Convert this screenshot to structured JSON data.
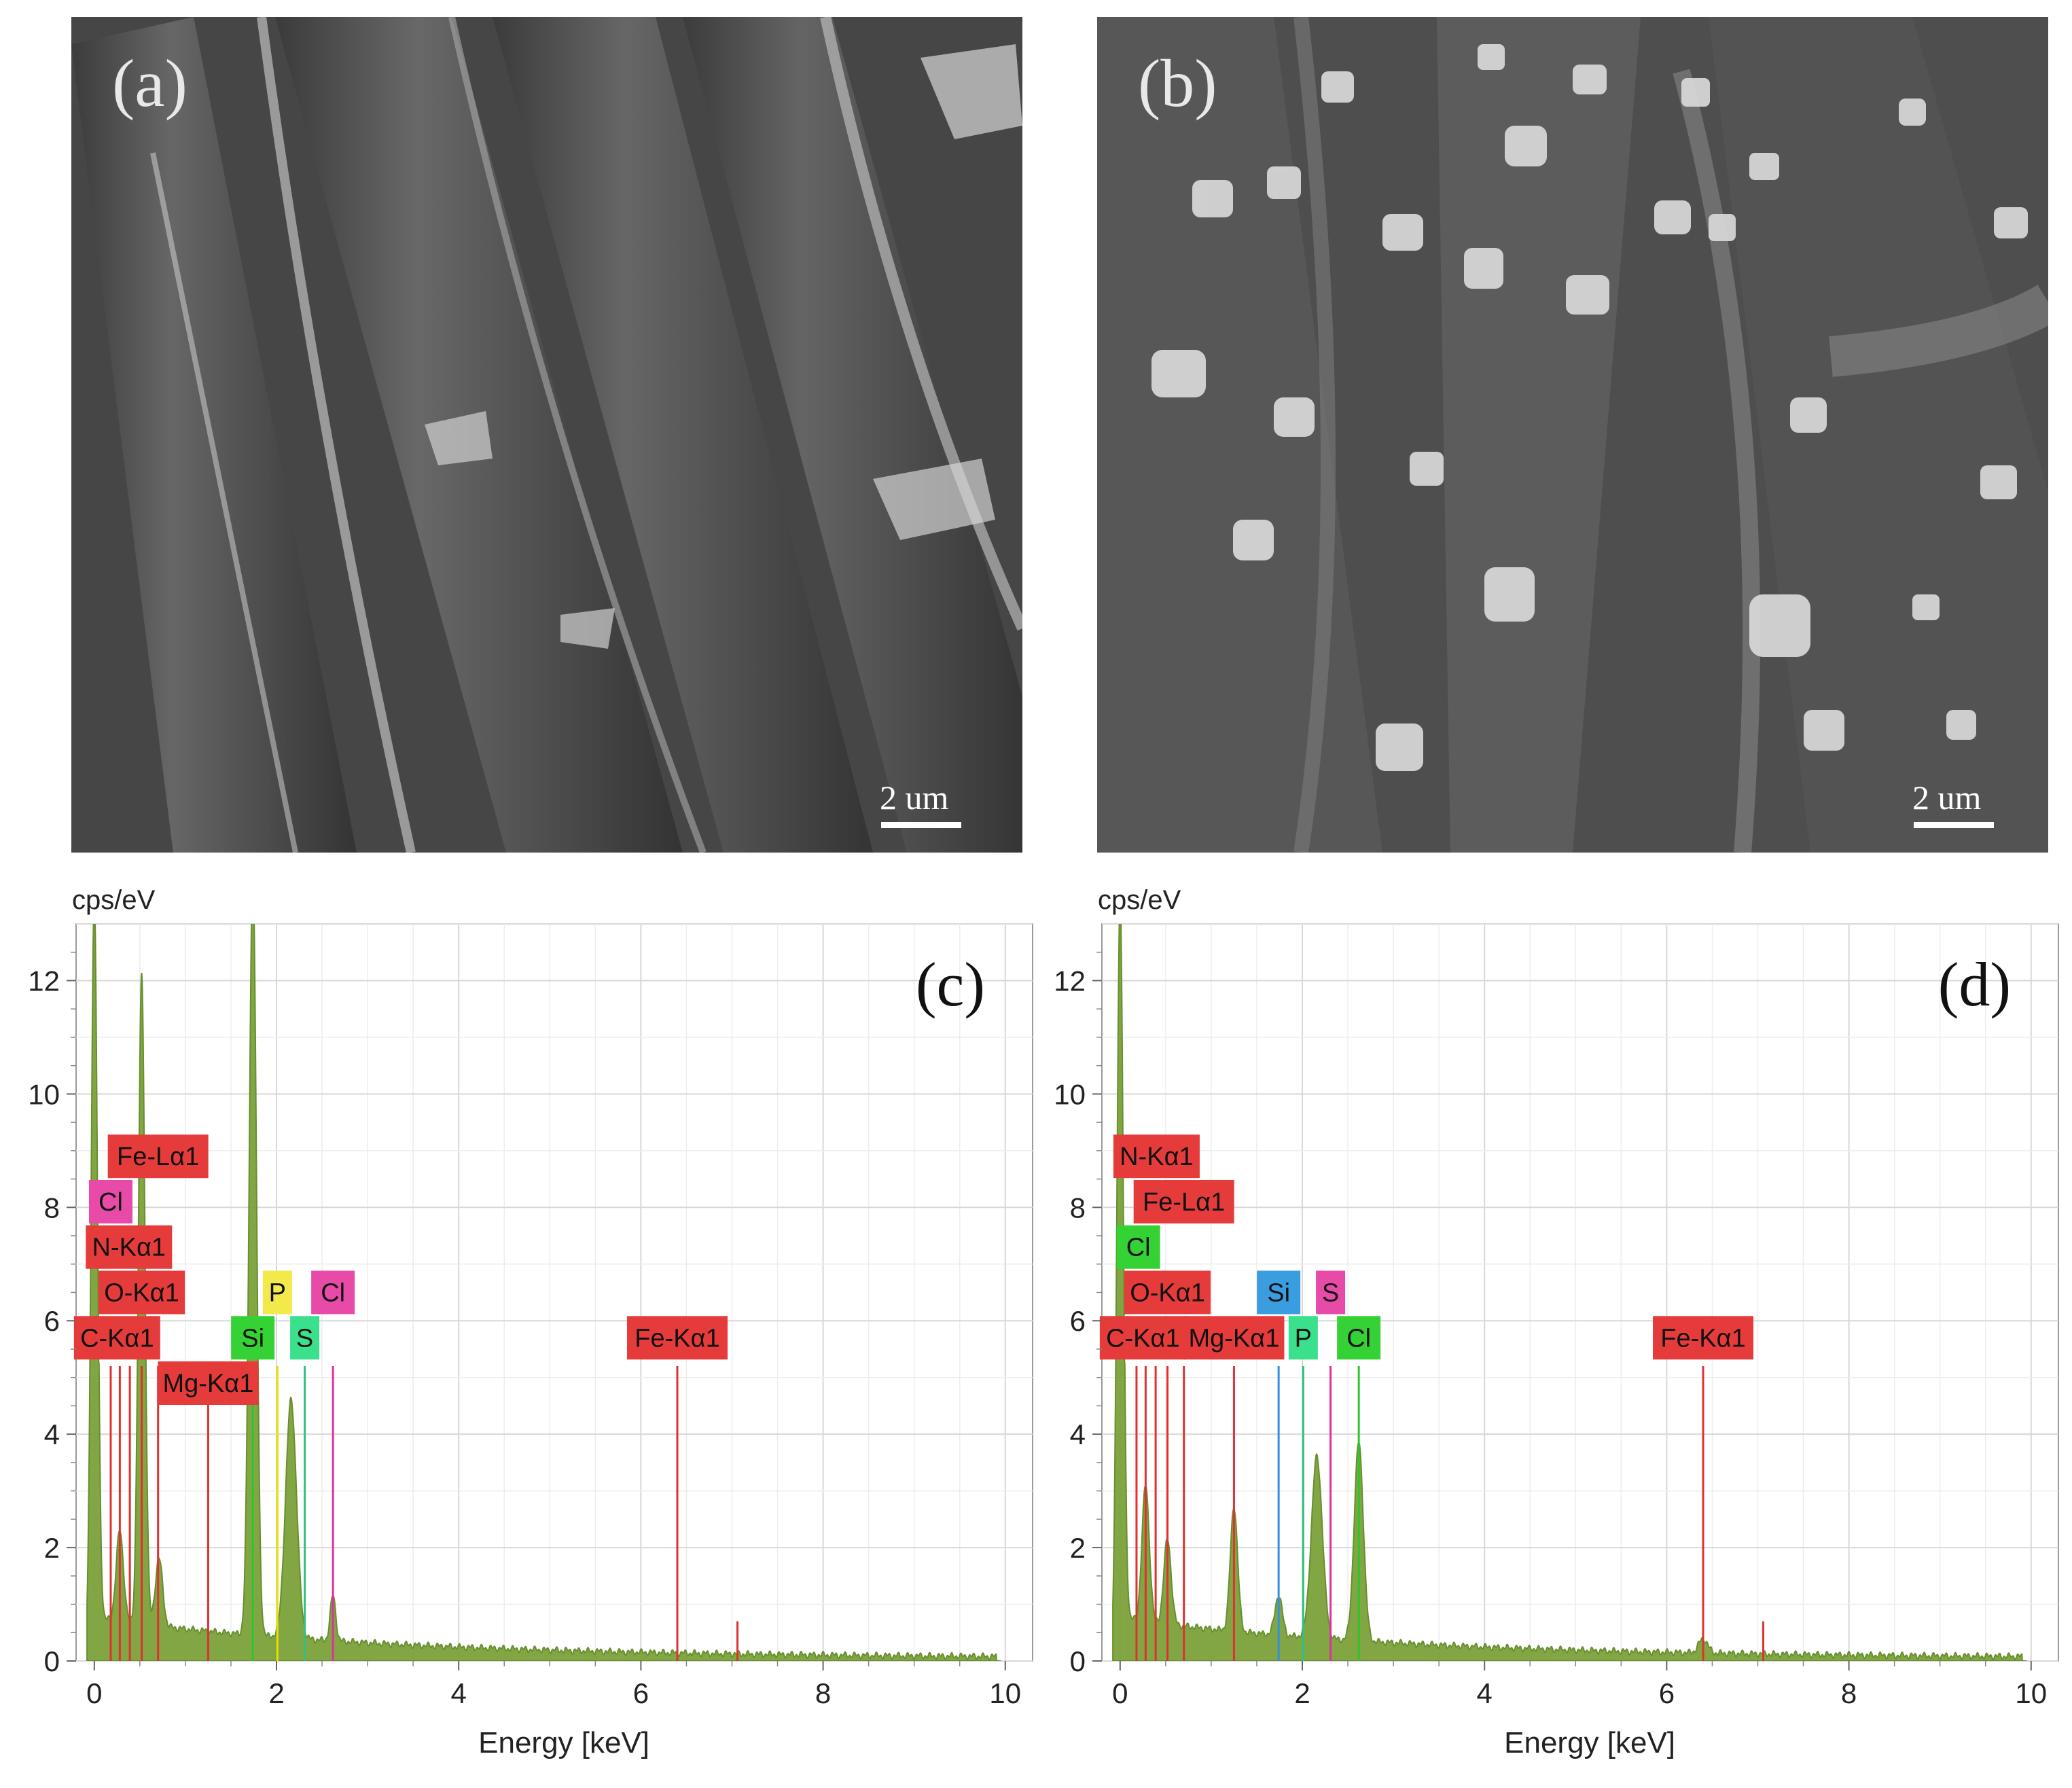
{
  "images": [
    {
      "label": "(a)",
      "scalebar": "2 um",
      "texture": "fibers"
    },
    {
      "label": "(b)",
      "scalebar": "2 um",
      "texture": "crystals"
    }
  ],
  "chart_data": [
    {
      "type": "line",
      "label": "(c)",
      "unit_label": "cps/eV",
      "xlabel": "Energy [keV]",
      "xlim": [
        -0.2,
        10.3
      ],
      "ylim": [
        0,
        13
      ],
      "x_ticks": [
        0,
        2,
        4,
        6,
        8,
        10
      ],
      "y_ticks": [
        0,
        2,
        4,
        6,
        8,
        10,
        12
      ],
      "grid": true,
      "colors": {
        "fill": "#7ca23b",
        "stroke": "#5f8a24"
      },
      "peaks": [
        {
          "x": 0.0,
          "y": 13.5,
          "w": 0.035
        },
        {
          "x": 0.28,
          "y": 1.6,
          "w": 0.04
        },
        {
          "x": 0.52,
          "y": 11.5,
          "w": 0.035
        },
        {
          "x": 0.71,
          "y": 1.2,
          "w": 0.04
        },
        {
          "x": 1.74,
          "y": 13.5,
          "w": 0.04
        },
        {
          "x": 2.16,
          "y": 4.2,
          "w": 0.06
        },
        {
          "x": 2.62,
          "y": 0.8,
          "w": 0.03
        }
      ],
      "element_lines": [
        {
          "x": 0.18,
          "color": "#e03030"
        },
        {
          "x": 0.28,
          "color": "#e03030"
        },
        {
          "x": 0.39,
          "color": "#e03030"
        },
        {
          "x": 0.52,
          "color": "#e03030"
        },
        {
          "x": 0.7,
          "color": "#e03030"
        },
        {
          "x": 1.25,
          "color": "#e03030"
        },
        {
          "x": 1.74,
          "color": "#2fc42f"
        },
        {
          "x": 2.01,
          "color": "#e8e000"
        },
        {
          "x": 2.31,
          "color": "#30c080"
        },
        {
          "x": 2.62,
          "color": "#e030a0"
        },
        {
          "x": 6.4,
          "color": "#e03030",
          "h": 5.2
        },
        {
          "x": 7.06,
          "color": "#e03030",
          "h": 0.7
        }
      ],
      "tags": [
        {
          "text": "Fe-Lα1",
          "x": 0.7,
          "y": 8.9,
          "bg": "#e63b3b"
        },
        {
          "text": "Cl",
          "x": 0.18,
          "y": 8.1,
          "bg": "#e84aa8"
        },
        {
          "text": "N-Kα1",
          "x": 0.38,
          "y": 7.3,
          "bg": "#e63b3b"
        },
        {
          "text": "O-Kα1",
          "x": 0.52,
          "y": 6.5,
          "bg": "#e63b3b"
        },
        {
          "text": "P",
          "x": 2.01,
          "y": 6.5,
          "bg": "#f2ea4b"
        },
        {
          "text": "Cl",
          "x": 2.62,
          "y": 6.5,
          "bg": "#e84aa8"
        },
        {
          "text": "C-Kα1",
          "x": 0.25,
          "y": 5.7,
          "bg": "#e63b3b"
        },
        {
          "text": "Si",
          "x": 1.74,
          "y": 5.7,
          "bg": "#35d235"
        },
        {
          "text": "S",
          "x": 2.31,
          "y": 5.7,
          "bg": "#3ae08c"
        },
        {
          "text": "Fe-Kα1",
          "x": 6.4,
          "y": 5.7,
          "bg": "#e63b3b"
        },
        {
          "text": "Mg-Kα1",
          "x": 1.25,
          "y": 4.9,
          "bg": "#e63b3b"
        }
      ]
    },
    {
      "type": "line",
      "label": "(d)",
      "unit_label": "cps/eV",
      "xlabel": "Energy [keV]",
      "xlim": [
        -0.2,
        10.3
      ],
      "ylim": [
        0,
        13
      ],
      "x_ticks": [
        0,
        2,
        4,
        6,
        8,
        10
      ],
      "y_ticks": [
        0,
        2,
        4,
        6,
        8,
        10,
        12
      ],
      "grid": true,
      "colors": {
        "fill": "#7ca23b",
        "stroke": "#5f8a24"
      },
      "peaks": [
        {
          "x": 0.0,
          "y": 13.5,
          "w": 0.035
        },
        {
          "x": 0.28,
          "y": 2.4,
          "w": 0.04
        },
        {
          "x": 0.52,
          "y": 1.5,
          "w": 0.04
        },
        {
          "x": 1.25,
          "y": 2.2,
          "w": 0.04
        },
        {
          "x": 1.74,
          "y": 0.7,
          "w": 0.04
        },
        {
          "x": 2.16,
          "y": 3.2,
          "w": 0.06
        },
        {
          "x": 2.62,
          "y": 3.5,
          "w": 0.05
        },
        {
          "x": 6.4,
          "y": 0.25,
          "w": 0.05
        }
      ],
      "element_lines": [
        {
          "x": 0.18,
          "color": "#e03030"
        },
        {
          "x": 0.28,
          "color": "#e03030"
        },
        {
          "x": 0.39,
          "color": "#e03030"
        },
        {
          "x": 0.52,
          "color": "#e03030"
        },
        {
          "x": 0.7,
          "color": "#e03030"
        },
        {
          "x": 1.25,
          "color": "#e03030"
        },
        {
          "x": 1.74,
          "color": "#3090e0"
        },
        {
          "x": 2.01,
          "color": "#30c080"
        },
        {
          "x": 2.31,
          "color": "#e030a0"
        },
        {
          "x": 2.62,
          "color": "#2fc42f"
        },
        {
          "x": 6.4,
          "color": "#e03030",
          "h": 5.2
        },
        {
          "x": 7.06,
          "color": "#e03030",
          "h": 0.7
        }
      ],
      "tags": [
        {
          "text": "N-Kα1",
          "x": 0.4,
          "y": 8.9,
          "bg": "#e63b3b"
        },
        {
          "text": "Fe-Lα1",
          "x": 0.7,
          "y": 8.1,
          "bg": "#e63b3b"
        },
        {
          "text": "Cl",
          "x": 0.2,
          "y": 7.3,
          "bg": "#35d235"
        },
        {
          "text": "O-Kα1",
          "x": 0.52,
          "y": 6.5,
          "bg": "#e63b3b"
        },
        {
          "text": "Si",
          "x": 1.74,
          "y": 6.5,
          "bg": "#3a9de0"
        },
        {
          "text": "S",
          "x": 2.31,
          "y": 6.5,
          "bg": "#e84aa8"
        },
        {
          "text": "C-Kα1",
          "x": 0.25,
          "y": 5.7,
          "bg": "#e63b3b"
        },
        {
          "text": "Mg-Kα1",
          "x": 1.25,
          "y": 5.7,
          "bg": "#e63b3b"
        },
        {
          "text": "P",
          "x": 2.01,
          "y": 5.7,
          "bg": "#3ae08c"
        },
        {
          "text": "Cl",
          "x": 2.62,
          "y": 5.7,
          "bg": "#35d235"
        },
        {
          "text": "Fe-Kα1",
          "x": 6.4,
          "y": 5.7,
          "bg": "#e63b3b"
        }
      ]
    }
  ]
}
